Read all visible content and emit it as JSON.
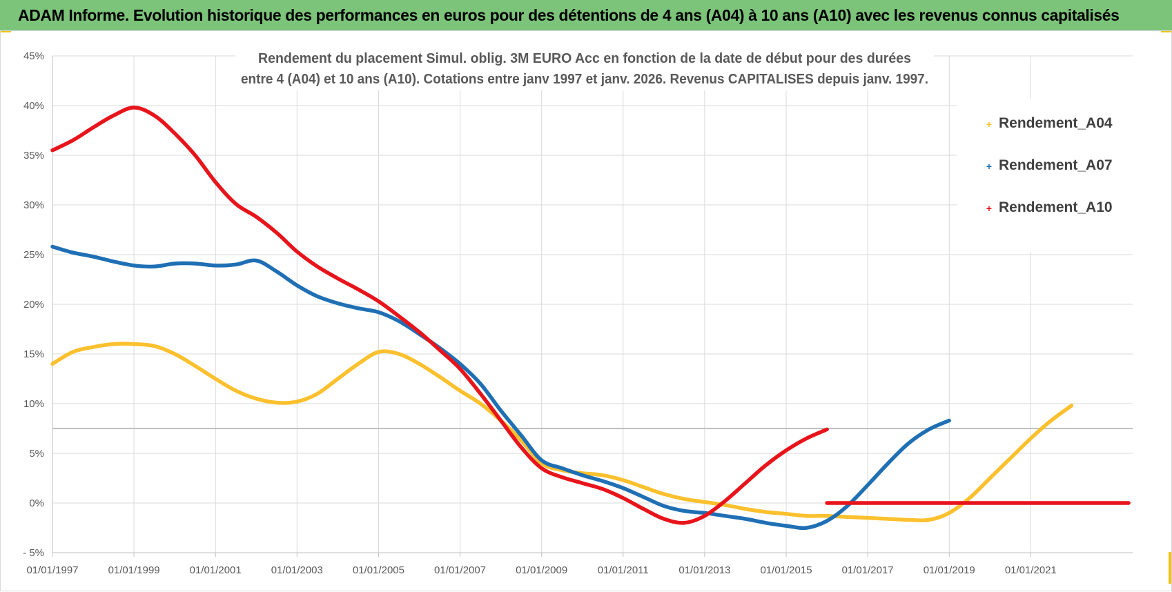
{
  "banner": {
    "title": "ADAM Informe. Evolution historique des performances en euros pour des détentions de 4 ans (A04) à 10 ans (A10) avec les revenus connus capitalisés"
  },
  "colors": {
    "banner": "#7cc47a",
    "a04": "#fbc02d",
    "a07": "#1f6fb4",
    "a10": "#e8141b",
    "grid": "#d9d9d9"
  },
  "chart_data": {
    "type": "scatter",
    "title_line1": "Rendement du placement Simul. oblig. 3M EURO Acc en fonction de la date de début pour des durées",
    "title_line2": "entre 4 (A04) et 10 ans (A10). Cotations entre janv 1997 et janv. 2026. Revenus CAPITALISES depuis janv. 1997.",
    "xlabel": "",
    "ylabel": "",
    "xlim": [
      1997,
      2023.5
    ],
    "ylim": [
      -5,
      45
    ],
    "y_ticks": [
      -5,
      0,
      5,
      10,
      15,
      20,
      25,
      30,
      35,
      40,
      45
    ],
    "y_tick_labels": [
      "- 5%",
      "0%",
      "5%",
      "10%",
      "15%",
      "20%",
      "25%",
      "30%",
      "35%",
      "40%",
      "45%"
    ],
    "x_ticks": [
      1997,
      1999,
      2001,
      2003,
      2005,
      2007,
      2009,
      2011,
      2013,
      2015,
      2017,
      2019,
      2021
    ],
    "x_tick_labels": [
      "01/01/1997",
      "01/01/1999",
      "01/01/2001",
      "01/01/2003",
      "01/01/2005",
      "01/01/2007",
      "01/01/2009",
      "01/01/2011",
      "01/01/2013",
      "01/01/2015",
      "01/01/2017",
      "01/01/2019",
      "01/01/2021"
    ],
    "reference_line_y": 7.5,
    "legend_position": "top-right",
    "series": [
      {
        "name": "Rendement_A04",
        "color": "#fbc02d",
        "x": [
          1997,
          1997.5,
          1998,
          1998.5,
          1999,
          1999.5,
          2000,
          2000.5,
          2001,
          2001.5,
          2002,
          2002.5,
          2003,
          2003.5,
          2004,
          2004.5,
          2005,
          2005.5,
          2006,
          2006.5,
          2007,
          2007.5,
          2008,
          2008.5,
          2009,
          2009.5,
          2010,
          2010.5,
          2011,
          2011.5,
          2012,
          2012.5,
          2013,
          2013.5,
          2014,
          2014.5,
          2015,
          2015.5,
          2016,
          2016.5,
          2017,
          2017.5,
          2018,
          2018.5,
          2019,
          2019.5,
          2020,
          2020.5,
          2021,
          2021.5,
          2022
        ],
        "y": [
          14.0,
          15.2,
          15.7,
          16.0,
          16.0,
          15.8,
          15.0,
          13.8,
          12.5,
          11.3,
          10.5,
          10.1,
          10.2,
          11.0,
          12.5,
          14.0,
          15.2,
          15.0,
          14.0,
          12.7,
          11.3,
          10.0,
          8.3,
          6.3,
          4.0,
          3.3,
          3.0,
          2.8,
          2.3,
          1.6,
          0.9,
          0.4,
          0.1,
          -0.2,
          -0.6,
          -0.9,
          -1.1,
          -1.3,
          -1.3,
          -1.4,
          -1.5,
          -1.6,
          -1.7,
          -1.7,
          -1.0,
          0.5,
          2.5,
          4.5,
          6.5,
          8.3,
          9.8
        ]
      },
      {
        "name": "Rendement_A07",
        "color": "#1f6fb4",
        "x": [
          1997,
          1997.5,
          1998,
          1998.5,
          1999,
          1999.5,
          2000,
          2000.5,
          2001,
          2001.5,
          2002,
          2002.5,
          2003,
          2003.5,
          2004,
          2004.5,
          2005,
          2005.5,
          2006,
          2006.5,
          2007,
          2007.5,
          2008,
          2008.5,
          2009,
          2009.5,
          2010,
          2010.5,
          2011,
          2011.5,
          2012,
          2012.5,
          2013,
          2013.5,
          2014,
          2014.5,
          2015,
          2015.5,
          2016,
          2016.5,
          2017,
          2017.5,
          2018,
          2018.5,
          2019
        ],
        "y": [
          25.8,
          25.2,
          24.8,
          24.3,
          23.9,
          23.8,
          24.1,
          24.1,
          23.9,
          24.0,
          24.4,
          23.3,
          21.9,
          20.8,
          20.1,
          19.6,
          19.2,
          18.3,
          17.0,
          15.6,
          14.0,
          12.0,
          9.3,
          6.8,
          4.3,
          3.5,
          2.8,
          2.2,
          1.5,
          0.6,
          -0.3,
          -0.8,
          -1.0,
          -1.3,
          -1.6,
          -2.0,
          -2.3,
          -2.5,
          -1.8,
          -0.3,
          1.8,
          4.0,
          6.0,
          7.4,
          8.3
        ]
      },
      {
        "name": "Rendement_A10",
        "color": "#e8141b",
        "x": [
          1997,
          1997.5,
          1998,
          1998.5,
          1999,
          1999.5,
          2000,
          2000.5,
          2001,
          2001.5,
          2002,
          2002.5,
          2003,
          2003.5,
          2004,
          2004.5,
          2005,
          2005.5,
          2006,
          2006.5,
          2007,
          2007.5,
          2008,
          2008.5,
          2009,
          2009.5,
          2010,
          2010.5,
          2011,
          2011.5,
          2012,
          2012.5,
          2013,
          2013.5,
          2014,
          2014.5,
          2015,
          2015.5,
          2016
        ],
        "y": [
          35.5,
          36.5,
          37.8,
          39.0,
          39.8,
          39.0,
          37.2,
          35.0,
          32.3,
          30.1,
          28.8,
          27.2,
          25.3,
          23.8,
          22.6,
          21.5,
          20.3,
          18.8,
          17.2,
          15.4,
          13.5,
          11.0,
          8.3,
          5.6,
          3.5,
          2.6,
          2.0,
          1.4,
          0.5,
          -0.6,
          -1.6,
          -2.0,
          -1.3,
          0.2,
          2.0,
          3.8,
          5.3,
          6.5,
          7.4
        ]
      }
    ],
    "extra_segment": {
      "series": "Rendement_A10",
      "x": [
        2016,
        2023.4
      ],
      "y": [
        0,
        0
      ]
    }
  }
}
